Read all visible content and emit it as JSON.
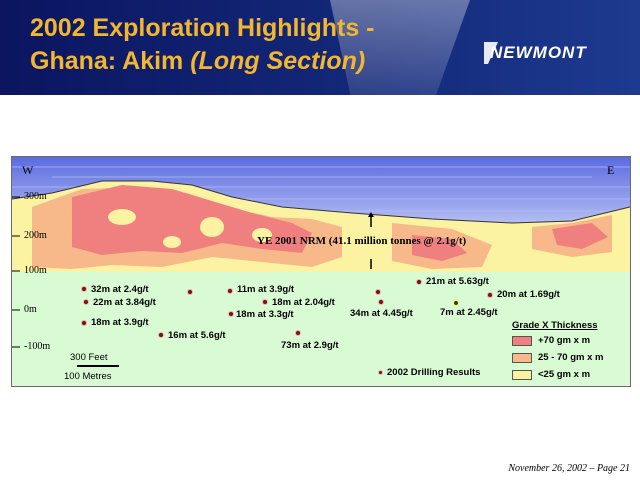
{
  "header": {
    "title_line1": "2002 Exploration Highlights -",
    "title_line2_plain": "Ghana: Akim ",
    "title_line2_italic": "(Long Section)",
    "logo": "NEWMONT"
  },
  "section": {
    "west_label": "W",
    "east_label": "E",
    "elevations": [
      "300m",
      "200m",
      "100m",
      "0m",
      "-100m"
    ],
    "resource_label": "YE 2001 NRM (41.1 million tonnes @ 2.1g/t)",
    "scale_feet": "300 Feet",
    "scale_metres": "100 Metres",
    "legend_drilling": "2002 Drilling Results",
    "results": [
      "32m at 2.4g/t",
      "22m at 3.84g/t",
      "18m at 3.9g/t",
      "16m at 5.6g/t",
      "11m at 3.9g/t",
      "18m at 2.04g/t",
      "18m at 3.3g/t",
      "73m at 2.9g/t",
      "34m at 4.45g/t",
      "21m at 5.63g/t",
      "20m at 1.69g/t",
      "7m at 2.45g/t"
    ]
  },
  "legend": {
    "title": "Grade X Thickness",
    "items": [
      {
        "label": "+70 gm x m",
        "color": "#f08080"
      },
      {
        "label": "25 - 70 gm x m",
        "color": "#f7b98a"
      },
      {
        "label": "<25 gm x m",
        "color": "#fbf3a2"
      }
    ]
  },
  "footer": "November 26, 2002 – Page 21",
  "colors": {
    "header_bg": "#0b1560",
    "title": "#f2b630",
    "sky": "#6f7fe0",
    "ground": "#d8fbd4"
  }
}
